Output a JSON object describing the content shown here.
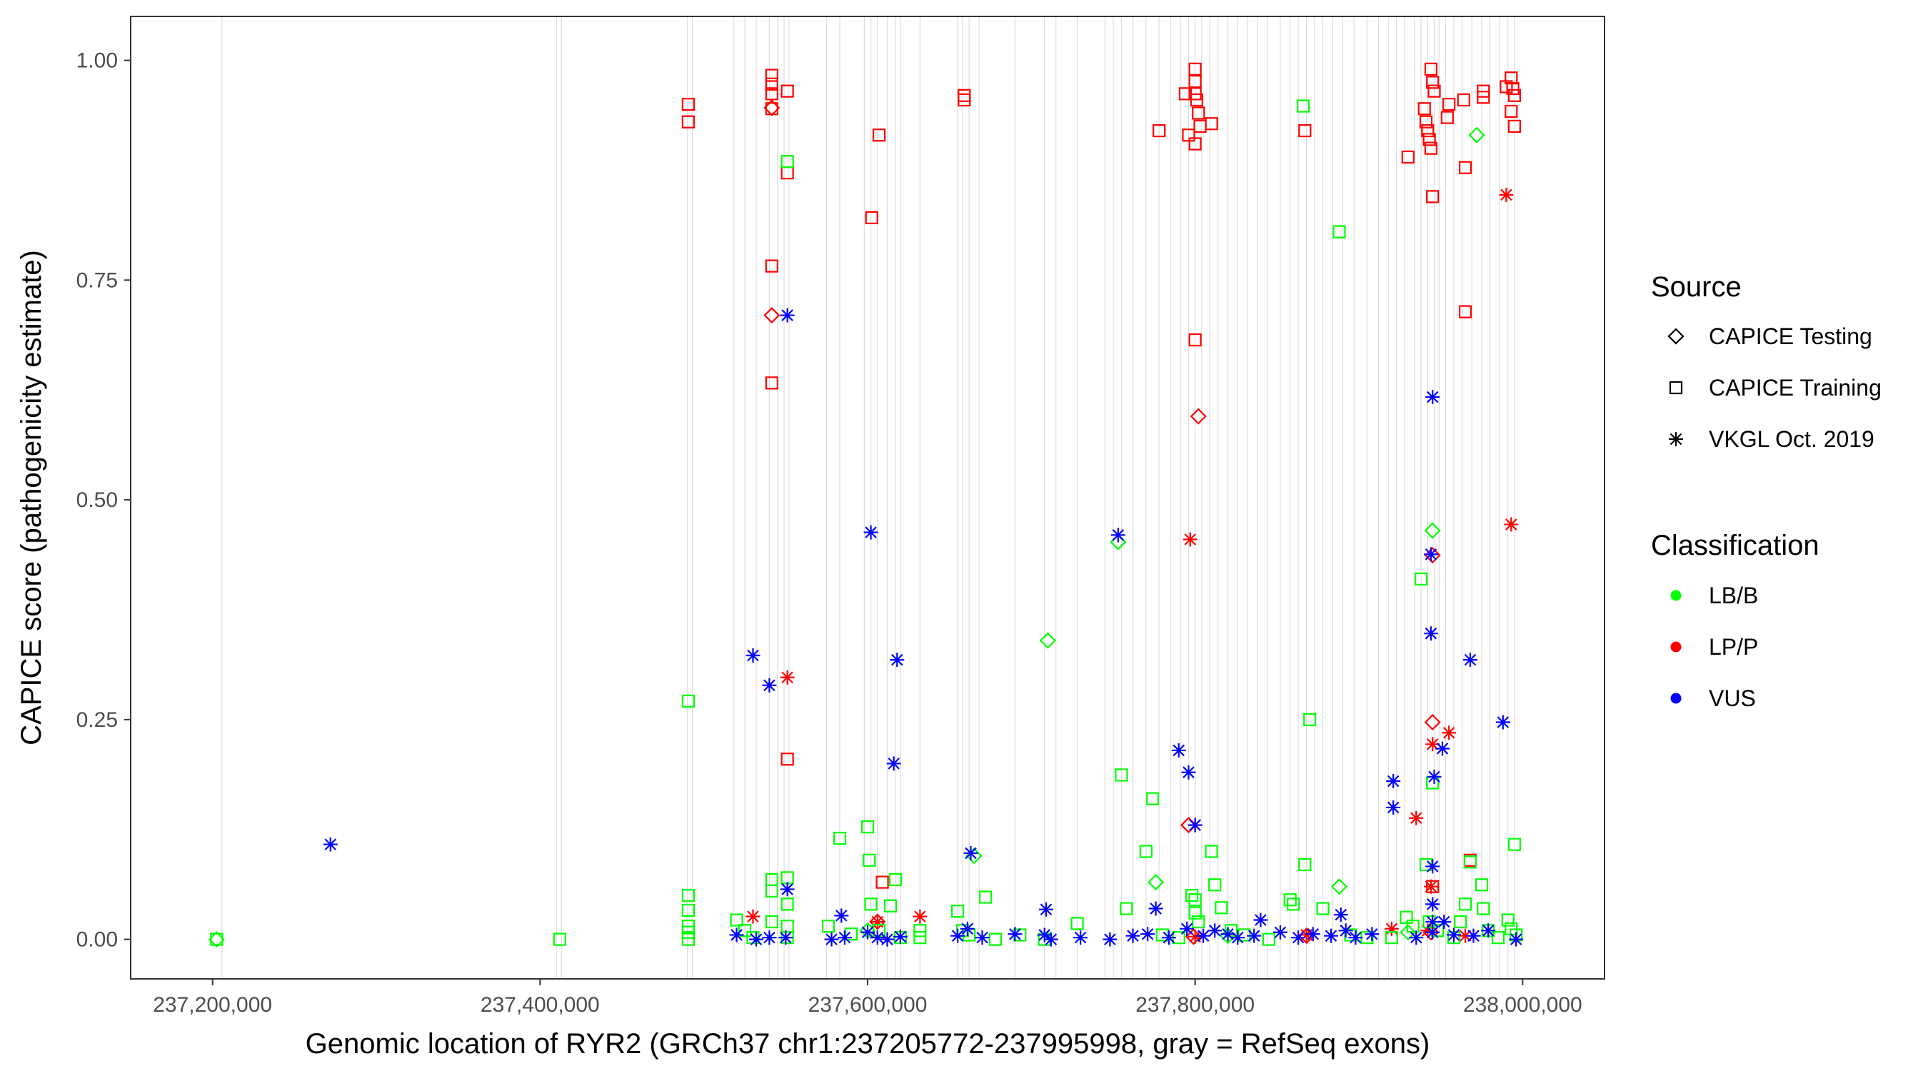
{
  "chart_data": {
    "type": "scatter",
    "title": "",
    "xlabel": "Genomic location of RYR2 (GRCh37 chr1:237205772-237995998, gray = RefSeq exons)",
    "ylabel": "CAPICE score (pathogenicity estimate)",
    "xlim": [
      237150000,
      238050000
    ],
    "ylim": [
      -0.045,
      1.05
    ],
    "x_ticks": [
      237200000,
      237400000,
      237600000,
      237800000,
      238000000
    ],
    "x_tick_labels": [
      "237,200,000",
      "237,400,000",
      "237,600,000",
      "237,800,000",
      "238,000,000"
    ],
    "y_ticks": [
      0,
      0.25,
      0.5,
      0.75,
      1.0
    ],
    "y_tick_labels": [
      "0.00",
      "0.25",
      "0.50",
      "0.75",
      "1.00"
    ],
    "grid": false,
    "exons": [
      237205772,
      237410000,
      237413000,
      237490000,
      237493000,
      237518000,
      237525000,
      237532000,
      237540000,
      237545000,
      237549000,
      237552000,
      237575000,
      237583000,
      237598000,
      237602000,
      237606000,
      237612000,
      237617000,
      237620000,
      237632000,
      237655000,
      237658000,
      237662000,
      237668000,
      237690000,
      237708000,
      237715000,
      237728000,
      237745000,
      237750000,
      237755000,
      237762000,
      237770000,
      237778000,
      237785000,
      237791000,
      237796000,
      237800000,
      237804000,
      237809000,
      237814000,
      237820000,
      237826000,
      237832000,
      237838000,
      237844000,
      237852000,
      237858000,
      237863000,
      237868000,
      237873000,
      237878000,
      237884000,
      237890000,
      237897000,
      237905000,
      237912000,
      237918000,
      237923000,
      237928000,
      237934000,
      237938000,
      237942000,
      237946000,
      237949000,
      237953000,
      237958000,
      237963000,
      237969000,
      237975000,
      237980000,
      237986000,
      237991000,
      237995000
    ],
    "legend": {
      "position": "right",
      "source_title": "Source",
      "source_items": [
        {
          "label": "CAPICE Testing",
          "shape": "diamond"
        },
        {
          "label": "CAPICE Training",
          "shape": "square"
        },
        {
          "label": "VKGL Oct. 2019",
          "shape": "asterisk"
        }
      ],
      "class_title": "Classification",
      "class_items": [
        {
          "label": "LB/B",
          "color": "#00ff00"
        },
        {
          "label": "LP/P",
          "color": "#ff0000"
        },
        {
          "label": "VUS",
          "color": "#0000ff"
        }
      ]
    },
    "colors": {
      "LB/B": "#00ff00",
      "LP/P": "#ff0000",
      "VUS": "#0000ff",
      "exon": "#d3d3d3"
    },
    "series": [
      {
        "name": "CAPICE Training LP/P",
        "shape": "square",
        "class": "LP/P",
        "points": [
          [
            237490500,
            0.95
          ],
          [
            237490500,
            0.93
          ],
          [
            237541500,
            0.983
          ],
          [
            237541500,
            0.973
          ],
          [
            237541500,
            0.962
          ],
          [
            237541500,
            0.945
          ],
          [
            237551000,
            0.965
          ],
          [
            237551000,
            0.872
          ],
          [
            237541500,
            0.766
          ],
          [
            237541500,
            0.633
          ],
          [
            237551000,
            0.205
          ],
          [
            237607000,
            0.915
          ],
          [
            237602500,
            0.821
          ],
          [
            237609000,
            0.065
          ],
          [
            237659000,
            0.96
          ],
          [
            237659000,
            0.955
          ],
          [
            237778000,
            0.92
          ],
          [
            237794000,
            0.962
          ],
          [
            237796000,
            0.915
          ],
          [
            237800000,
            0.99
          ],
          [
            237800000,
            0.976
          ],
          [
            237800000,
            0.962
          ],
          [
            237801000,
            0.955
          ],
          [
            237802000,
            0.94
          ],
          [
            237803000,
            0.925
          ],
          [
            237800000,
            0.905
          ],
          [
            237810000,
            0.928
          ],
          [
            237800000,
            0.682
          ],
          [
            237867000,
            0.92
          ],
          [
            237930000,
            0.89
          ],
          [
            237940000,
            0.945
          ],
          [
            237941000,
            0.93
          ],
          [
            237942000,
            0.92
          ],
          [
            237943000,
            0.91
          ],
          [
            237944000,
            0.9
          ],
          [
            237944000,
            0.99
          ],
          [
            237945000,
            0.975
          ],
          [
            237946000,
            0.965
          ],
          [
            237945000,
            0.845
          ],
          [
            237955000,
            0.95
          ],
          [
            237954000,
            0.935
          ],
          [
            237964000,
            0.955
          ],
          [
            237965000,
            0.878
          ],
          [
            237965000,
            0.714
          ],
          [
            237976000,
            0.965
          ],
          [
            237976000,
            0.958
          ],
          [
            237990000,
            0.97
          ],
          [
            237993000,
            0.98
          ],
          [
            237994000,
            0.968
          ],
          [
            237995000,
            0.96
          ],
          [
            237993000,
            0.942
          ],
          [
            237995000,
            0.925
          ],
          [
            237968000,
            0.09
          ],
          [
            237945000,
            0.06
          ]
        ]
      },
      {
        "name": "CAPICE Testing LP/P",
        "shape": "diamond",
        "class": "LP/P",
        "points": [
          [
            237541500,
            0.946
          ],
          [
            237541500,
            0.71
          ],
          [
            237802000,
            0.595
          ],
          [
            237796000,
            0.13
          ],
          [
            237945000,
            0.247
          ],
          [
            237945000,
            0.437
          ],
          [
            237944000,
            0.008
          ],
          [
            237606000,
            0.02
          ],
          [
            237868000,
            0.004
          ],
          [
            237799000,
            0.003
          ]
        ]
      },
      {
        "name": "VKGL LP/P",
        "shape": "asterisk",
        "class": "LP/P",
        "points": [
          [
            237990000,
            0.847
          ],
          [
            237993000,
            0.472
          ],
          [
            237797000,
            0.455
          ],
          [
            237551000,
            0.298
          ],
          [
            237945000,
            0.222
          ],
          [
            237955000,
            0.235
          ],
          [
            237935000,
            0.138
          ],
          [
            237530000,
            0.026
          ],
          [
            237632000,
            0.026
          ],
          [
            237800000,
            0.13
          ],
          [
            237606000,
            0.02
          ],
          [
            237944000,
            0.06
          ],
          [
            237920000,
            0.012
          ],
          [
            237942000,
            0.01
          ],
          [
            237800000,
            0.003
          ],
          [
            237868000,
            0.005
          ],
          [
            237965000,
            0.004
          ]
        ]
      },
      {
        "name": "CAPICE Training LB/B",
        "shape": "square",
        "class": "LB/B",
        "points": [
          [
            237202500,
            0.0
          ],
          [
            237412000,
            0.0
          ],
          [
            237490500,
            0.271
          ],
          [
            237490500,
            0.05
          ],
          [
            237490500,
            0.033
          ],
          [
            237490500,
            0.015
          ],
          [
            237490500,
            0.008
          ],
          [
            237490500,
            0.0
          ],
          [
            237520000,
            0.022
          ],
          [
            237525000,
            0.01
          ],
          [
            237530000,
            0.002
          ],
          [
            237541500,
            0.068
          ],
          [
            237541500,
            0.055
          ],
          [
            237541500,
            0.02
          ],
          [
            237551000,
            0.885
          ],
          [
            237551000,
            0.07
          ],
          [
            237551000,
            0.04
          ],
          [
            237551000,
            0.015
          ],
          [
            237551000,
            0.002
          ],
          [
            237576000,
            0.015
          ],
          [
            237583000,
            0.115
          ],
          [
            237590000,
            0.006
          ],
          [
            237600000,
            0.128
          ],
          [
            237601000,
            0.09
          ],
          [
            237602000,
            0.04
          ],
          [
            237607000,
            0.01
          ],
          [
            237614000,
            0.038
          ],
          [
            237617000,
            0.068
          ],
          [
            237620000,
            0.002
          ],
          [
            237632000,
            0.01
          ],
          [
            237632000,
            0.002
          ],
          [
            237655000,
            0.032
          ],
          [
            237658000,
            0.01
          ],
          [
            237662000,
            0.005
          ],
          [
            237672000,
            0.048
          ],
          [
            237678000,
            0.0
          ],
          [
            237693000,
            0.005
          ],
          [
            237708000,
            0.0
          ],
          [
            237728000,
            0.018
          ],
          [
            237755000,
            0.187
          ],
          [
            237758000,
            0.035
          ],
          [
            237770000,
            0.1
          ],
          [
            237774000,
            0.16
          ],
          [
            237780000,
            0.005
          ],
          [
            237790000,
            0.002
          ],
          [
            237798000,
            0.05
          ],
          [
            237800000,
            0.045
          ],
          [
            237800000,
            0.03
          ],
          [
            237802000,
            0.02
          ],
          [
            237810000,
            0.1
          ],
          [
            237812000,
            0.062
          ],
          [
            237816000,
            0.036
          ],
          [
            237822000,
            0.01
          ],
          [
            237830000,
            0.005
          ],
          [
            237845000,
            0.0
          ],
          [
            237858000,
            0.045
          ],
          [
            237860000,
            0.04
          ],
          [
            237866000,
            0.948
          ],
          [
            237867000,
            0.085
          ],
          [
            237870000,
            0.25
          ],
          [
            237878000,
            0.035
          ],
          [
            237888000,
            0.805
          ],
          [
            237895000,
            0.005
          ],
          [
            237905000,
            0.002
          ],
          [
            237920000,
            0.002
          ],
          [
            237929000,
            0.025
          ],
          [
            237933000,
            0.015
          ],
          [
            237938000,
            0.41
          ],
          [
            237941000,
            0.085
          ],
          [
            237945000,
            0.178
          ],
          [
            237943000,
            0.02
          ],
          [
            237948000,
            0.01
          ],
          [
            237958000,
            0.002
          ],
          [
            237962000,
            0.02
          ],
          [
            237965000,
            0.04
          ],
          [
            237968000,
            0.088
          ],
          [
            237975000,
            0.062
          ],
          [
            237976000,
            0.035
          ],
          [
            237979000,
            0.01
          ],
          [
            237985000,
            0.002
          ],
          [
            237991000,
            0.022
          ],
          [
            237993000,
            0.012
          ],
          [
            237995000,
            0.108
          ],
          [
            237996000,
            0.005
          ]
        ]
      },
      {
        "name": "CAPICE Testing LB/B",
        "shape": "diamond",
        "class": "LB/B",
        "points": [
          [
            237202500,
            0.0
          ],
          [
            237710000,
            0.34
          ],
          [
            237753000,
            0.452
          ],
          [
            237776000,
            0.065
          ],
          [
            237888000,
            0.06
          ],
          [
            237945000,
            0.465
          ],
          [
            237972000,
            0.915
          ],
          [
            237665000,
            0.095
          ],
          [
            237600000,
            0.01
          ],
          [
            237820000,
            0.004
          ],
          [
            237930000,
            0.008
          ]
        ]
      },
      {
        "name": "VKGL VUS",
        "shape": "asterisk",
        "class": "VUS",
        "points": [
          [
            237272000,
            0.108
          ],
          [
            237551000,
            0.71
          ],
          [
            237530000,
            0.323
          ],
          [
            237540000,
            0.289
          ],
          [
            237551000,
            0.057
          ],
          [
            237602000,
            0.463
          ],
          [
            237618000,
            0.318
          ],
          [
            237616000,
            0.2
          ],
          [
            237584000,
            0.027
          ],
          [
            237663000,
            0.098
          ],
          [
            237709000,
            0.034
          ],
          [
            237753000,
            0.46
          ],
          [
            237790000,
            0.215
          ],
          [
            237796000,
            0.19
          ],
          [
            237800000,
            0.13
          ],
          [
            237776000,
            0.035
          ],
          [
            237840000,
            0.022
          ],
          [
            237889000,
            0.028
          ],
          [
            237921000,
            0.18
          ],
          [
            237921000,
            0.15
          ],
          [
            237945000,
            0.617
          ],
          [
            237944000,
            0.438
          ],
          [
            237944000,
            0.348
          ],
          [
            237946000,
            0.185
          ],
          [
            237951000,
            0.217
          ],
          [
            237968000,
            0.318
          ],
          [
            237988000,
            0.247
          ],
          [
            237945000,
            0.083
          ],
          [
            237945000,
            0.04
          ],
          [
            237945000,
            0.02
          ],
          [
            237520000,
            0.005
          ],
          [
            237532000,
            0.0
          ],
          [
            237540000,
            0.002
          ],
          [
            237550000,
            0.002
          ],
          [
            237578000,
            0.0
          ],
          [
            237586000,
            0.002
          ],
          [
            237600000,
            0.008
          ],
          [
            237606000,
            0.002
          ],
          [
            237612000,
            0.0
          ],
          [
            237620000,
            0.003
          ],
          [
            237655000,
            0.004
          ],
          [
            237661000,
            0.012
          ],
          [
            237670000,
            0.002
          ],
          [
            237690000,
            0.006
          ],
          [
            237708000,
            0.005
          ],
          [
            237712000,
            0.0
          ],
          [
            237730000,
            0.002
          ],
          [
            237748000,
            0.0
          ],
          [
            237762000,
            0.004
          ],
          [
            237771000,
            0.006
          ],
          [
            237784000,
            0.002
          ],
          [
            237795000,
            0.012
          ],
          [
            237805000,
            0.004
          ],
          [
            237812000,
            0.01
          ],
          [
            237820000,
            0.006
          ],
          [
            237826000,
            0.002
          ],
          [
            237836000,
            0.004
          ],
          [
            237852000,
            0.008
          ],
          [
            237863000,
            0.002
          ],
          [
            237872000,
            0.006
          ],
          [
            237883000,
            0.004
          ],
          [
            237892000,
            0.01
          ],
          [
            237898000,
            0.002
          ],
          [
            237908000,
            0.006
          ],
          [
            237935000,
            0.002
          ],
          [
            237945000,
            0.008
          ],
          [
            237952000,
            0.02
          ],
          [
            237958000,
            0.005
          ],
          [
            237970000,
            0.004
          ],
          [
            237979000,
            0.01
          ],
          [
            237996000,
            0.0
          ]
        ]
      }
    ]
  }
}
